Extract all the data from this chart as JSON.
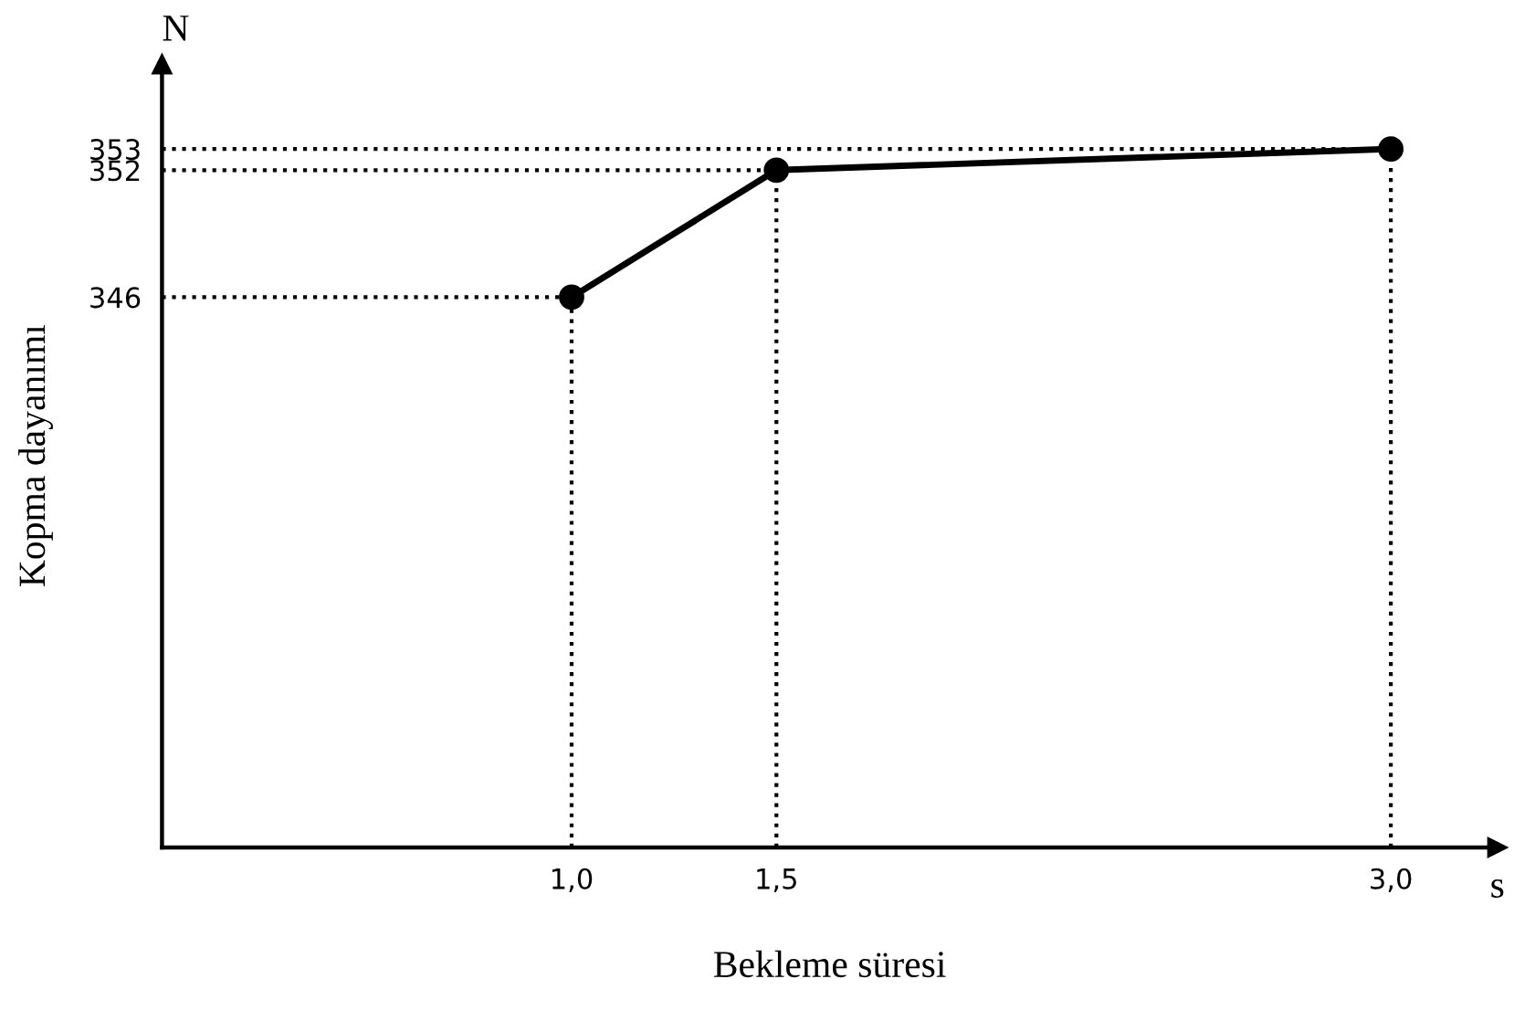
{
  "chart_data": {
    "type": "line",
    "xlabel": "Bekleme süresi",
    "ylabel": "Kopma dayanımı",
    "annotations": [
      "N",
      "s"
    ],
    "x": [
      1.0,
      1.5,
      3.0
    ],
    "series": [
      {
        "color": "#000000",
        "values": [
          346,
          352,
          353
        ]
      }
    ],
    "marker": "circle",
    "line_style": "solid",
    "grid": false,
    "xlim": [
      0,
      3.26
    ],
    "ylim": [
      320,
      357
    ],
    "xticks": [
      {
        "value": 1.0,
        "label": "1,0"
      },
      {
        "value": 1.5,
        "label": "1,5"
      },
      {
        "value": 3.0,
        "label": "3,0"
      }
    ],
    "yticks": [
      346,
      352,
      353
    ],
    "ref_lines": [
      {
        "axis": "x",
        "value": 1.0,
        "line_style": "dotted",
        "color": "#000000"
      },
      {
        "axis": "x",
        "value": 1.5,
        "line_style": "dotted",
        "color": "#000000"
      },
      {
        "axis": "x",
        "value": 3.0,
        "line_style": "dotted",
        "color": "#000000"
      },
      {
        "axis": "y",
        "value": 346,
        "line_style": "dotted",
        "color": "#000000"
      },
      {
        "axis": "y",
        "value": 352,
        "line_style": "dotted",
        "color": "#000000"
      },
      {
        "axis": "y",
        "value": 353,
        "line_style": "dotted",
        "color": "#000000"
      }
    ]
  }
}
